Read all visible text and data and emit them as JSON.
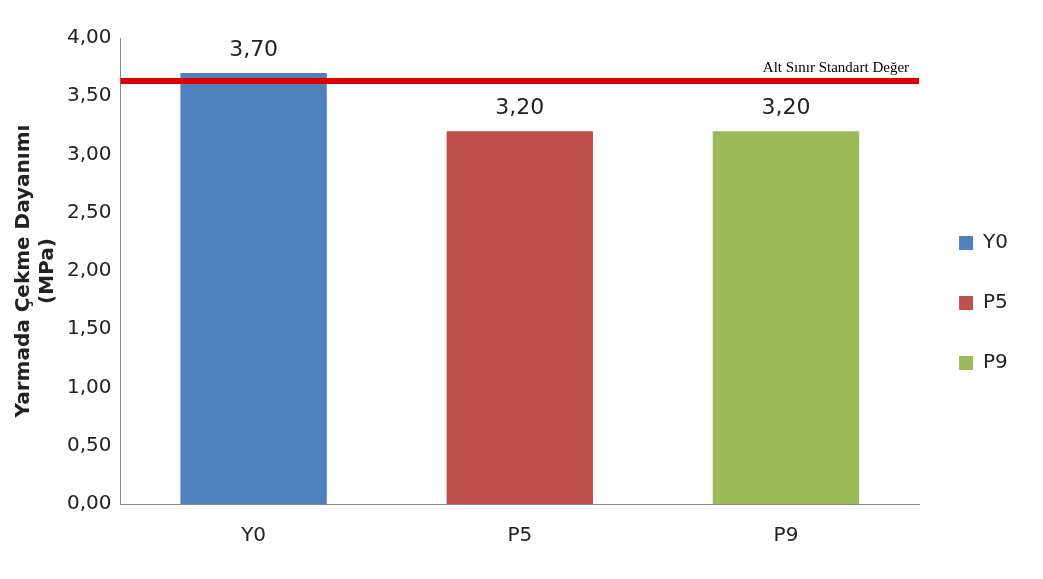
{
  "chart_data": {
    "type": "bar",
    "ylabel": "Yarmada Çekme Dayanımı\n(MPa)",
    "categories": [
      "Y0",
      "P5",
      "P9"
    ],
    "series": [
      {
        "name": "Y0",
        "color": "#4f81bd",
        "values": [
          3.7,
          null,
          null
        ],
        "value_labels": [
          "3,70",
          null,
          null
        ]
      },
      {
        "name": "P5",
        "color": "#c0504d",
        "values": [
          null,
          3.2,
          null
        ],
        "value_labels": [
          null,
          "3,20",
          null
        ]
      },
      {
        "name": "P9",
        "color": "#9bbb59",
        "values": [
          null,
          null,
          3.2
        ],
        "value_labels": [
          null,
          null,
          "3,20"
        ]
      }
    ],
    "ylim": [
      0,
      4
    ],
    "yticks": [
      {
        "value": 0,
        "label": "0,00"
      },
      {
        "value": 0.5,
        "label": "0,50"
      },
      {
        "value": 1,
        "label": "1,00"
      },
      {
        "value": 1.5,
        "label": "1,50"
      },
      {
        "value": 2,
        "label": "2,00"
      },
      {
        "value": 2.5,
        "label": "2,50"
      },
      {
        "value": 3,
        "label": "3,00"
      },
      {
        "value": 3.5,
        "label": "3,50"
      },
      {
        "value": 4,
        "label": "4,00"
      }
    ],
    "ref_lines": [
      {
        "axis": "y",
        "value": 3.63,
        "label": "Alt Sınır Standart Değer",
        "color": "#e00000"
      }
    ],
    "grid": false,
    "legend": "right"
  }
}
